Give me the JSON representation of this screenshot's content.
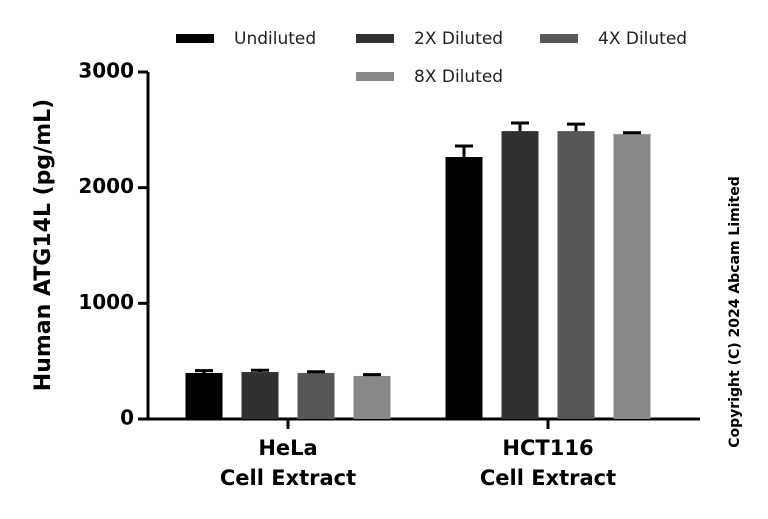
{
  "chart_data": {
    "type": "bar",
    "y_label": "Human ATG14L (pg/mL)",
    "categories": [
      "HeLa\nCell Extract",
      "HCT116\nCell Extract"
    ],
    "series": [
      {
        "name": "Undiluted",
        "color": "#000000",
        "values": [
          398,
          2265
        ],
        "errors": [
          20,
          95
        ]
      },
      {
        "name": "2X Diluted",
        "color": "#313131",
        "values": [
          406,
          2489
        ],
        "errors": [
          15,
          70
        ]
      },
      {
        "name": "4X Diluted",
        "color": "#575757",
        "values": [
          398,
          2489
        ],
        "errors": [
          10,
          60
        ]
      },
      {
        "name": "8X Diluted",
        "color": "#888888",
        "values": [
          372,
          2463
        ],
        "errors": [
          12,
          12
        ]
      }
    ],
    "ylim": [
      0,
      3000
    ],
    "yticks": [
      0,
      1000,
      2000,
      3000
    ],
    "note": "Copyright (C) 2024 Abcam Limited"
  }
}
